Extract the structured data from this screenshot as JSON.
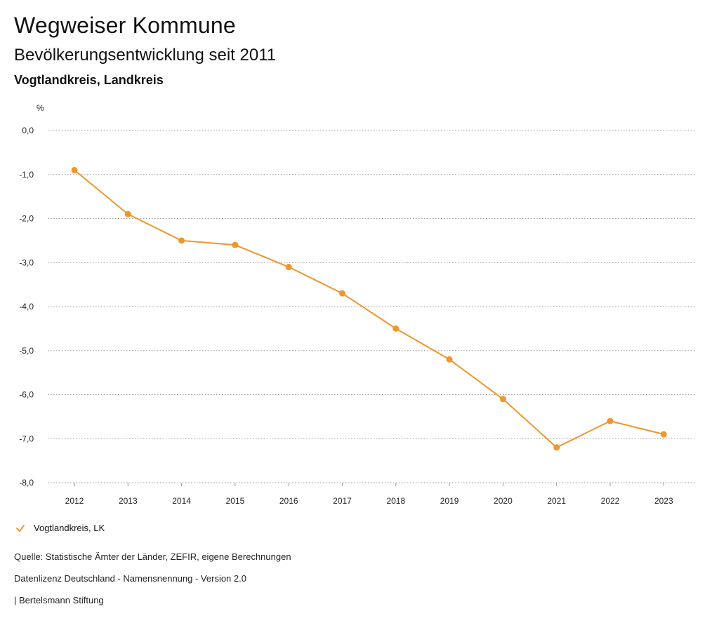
{
  "header": {
    "title": "Wegweiser Kommune",
    "subtitle": "Bevölkerungsentwicklung seit 2011",
    "region": "Vogtlandkreis, Landkreis"
  },
  "chart_data": {
    "type": "line",
    "unit_label": "%",
    "categories": [
      "2012",
      "2013",
      "2014",
      "2015",
      "2016",
      "2017",
      "2018",
      "2019",
      "2020",
      "2021",
      "2022",
      "2023"
    ],
    "series": [
      {
        "name": "Vogtlandkreis, LK",
        "color": "#f0962e",
        "values": [
          -0.9,
          -1.9,
          -2.5,
          -2.6,
          -3.1,
          -3.7,
          -4.5,
          -5.2,
          -6.1,
          -7.2,
          -6.6,
          -6.9
        ]
      }
    ],
    "ylim": [
      -8.0,
      0.0
    ],
    "yticks": [
      0.0,
      -1.0,
      -2.0,
      -3.0,
      -4.0,
      -5.0,
      -6.0,
      -7.0,
      -8.0
    ],
    "ytick_labels": [
      "0,0",
      "-1,0",
      "-2,0",
      "-3,0",
      "-4,0",
      "-5,0",
      "-6,0",
      "-7,0",
      "-8,0"
    ],
    "grid": true,
    "legend_position": "bottom-left"
  },
  "footer": {
    "source": "Quelle: Statistische Ämter der Länder, ZEFIR, eigene Berechnungen",
    "license": "Datenlizenz Deutschland - Namensnennung - Version 2.0",
    "publisher": "| Bertelsmann Stiftung"
  }
}
